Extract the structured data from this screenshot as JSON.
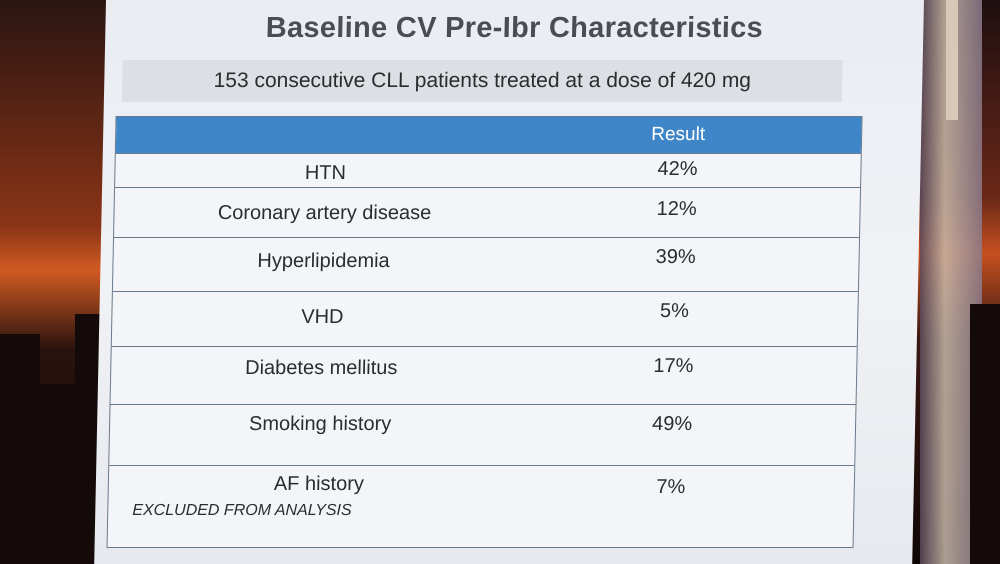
{
  "slide": {
    "title": "Baseline CV Pre-Ibr Characteristics",
    "subtitle": "153 consecutive CLL patients treated at a dose of 420 mg"
  },
  "table": {
    "header": {
      "label_col": "",
      "value_col": "Result"
    },
    "rows": [
      {
        "label": "HTN",
        "value": "42%",
        "note": ""
      },
      {
        "label": "Coronary artery disease",
        "value": "12%",
        "note": ""
      },
      {
        "label": "Hyperlipidemia",
        "value": "39%",
        "note": ""
      },
      {
        "label": "VHD",
        "value": "5%",
        "note": ""
      },
      {
        "label": "Diabetes mellitus",
        "value": "17%",
        "note": ""
      },
      {
        "label": "Smoking history",
        "value": "49%",
        "note": ""
      },
      {
        "label": "AF history",
        "value": "7%",
        "note": "EXCLUDED FROM ANALYSIS"
      }
    ]
  },
  "colors": {
    "header_blue": "#3f86c9",
    "slide_bg": "#eef1f4",
    "text": "#2a2c30",
    "title_gray": "#4a4d52"
  }
}
